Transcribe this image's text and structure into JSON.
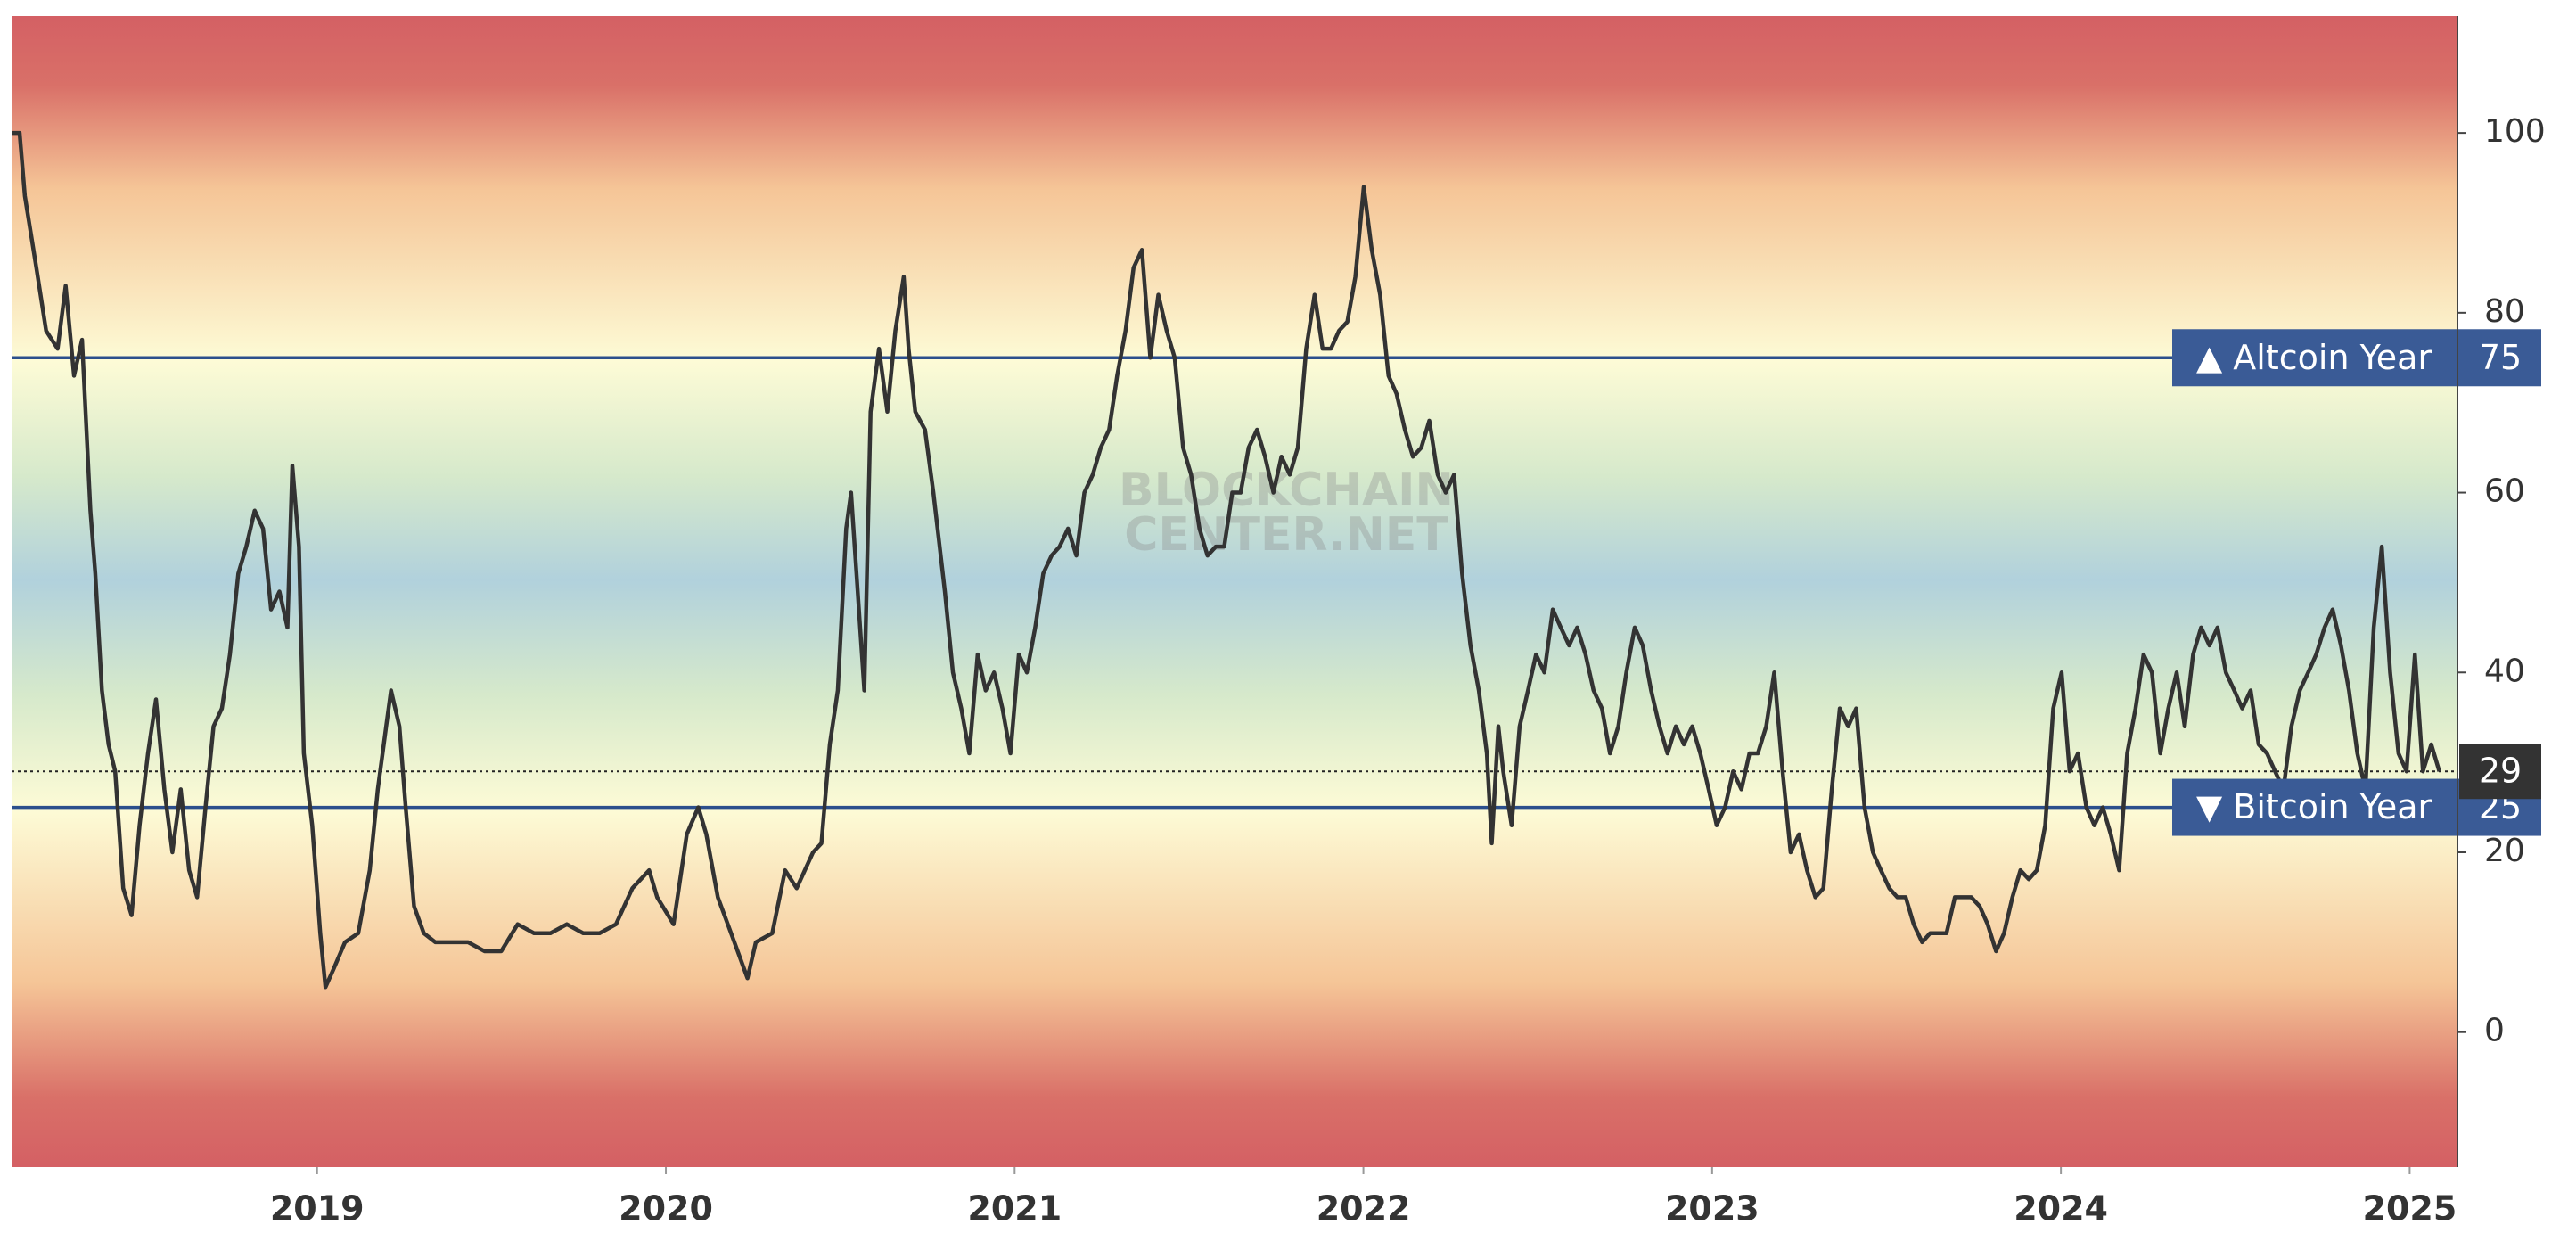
{
  "chart_data": {
    "type": "line",
    "color": "#333333",
    "watermark": [
      "BLOCKCHAIN",
      "CENTER.NET"
    ],
    "xlim": [
      2018.124,
      2025.137
    ],
    "ylim": [
      -15,
      113
    ],
    "xticks": [
      2019,
      2020,
      2021,
      2022,
      2023,
      2024,
      2025
    ],
    "yticks": [
      0,
      20,
      40,
      60,
      80,
      100
    ],
    "annotations": [
      {
        "text": "▲ Altcoin Year",
        "value": 75,
        "color": "#2c4f8c"
      },
      {
        "text": "▼ Bitcoin Year",
        "value": 25,
        "color": "#2c4f8c"
      }
    ],
    "current": 29,
    "x": [
      2018.124,
      2018.147,
      2018.162,
      2018.195,
      2018.223,
      2018.256,
      2018.279,
      2018.303,
      2018.326,
      2018.35,
      2018.364,
      2018.383,
      2018.402,
      2018.421,
      2018.444,
      2018.468,
      2018.491,
      2018.515,
      2018.538,
      2018.562,
      2018.585,
      2018.609,
      2018.633,
      2018.656,
      2018.68,
      2018.703,
      2018.727,
      2018.75,
      2018.774,
      2018.797,
      2018.821,
      2018.845,
      2018.868,
      2018.892,
      2018.915,
      2018.929,
      2018.948,
      2018.962,
      2018.986,
      2019.009,
      2019.024,
      2019.047,
      2019.08,
      2019.118,
      2019.151,
      2019.174,
      2019.198,
      2019.212,
      2019.236,
      2019.254,
      2019.278,
      2019.306,
      2019.339,
      2019.386,
      2019.433,
      2019.48,
      2019.528,
      2019.575,
      2019.622,
      2019.669,
      2019.716,
      2019.763,
      2019.81,
      2019.857,
      2019.904,
      2019.952,
      2019.975,
      2020.022,
      2020.06,
      2020.093,
      2020.116,
      2020.149,
      2020.187,
      2020.234,
      2020.258,
      2020.305,
      2020.342,
      2020.375,
      2020.422,
      2020.446,
      2020.47,
      2020.493,
      2020.517,
      2020.531,
      2020.55,
      2020.569,
      2020.587,
      2020.611,
      2020.635,
      2020.658,
      2020.682,
      2020.696,
      2020.715,
      2020.743,
      2020.767,
      2020.8,
      2020.823,
      2020.847,
      2020.87,
      2020.894,
      2020.917,
      2020.941,
      2020.965,
      2020.988,
      2021.012,
      2021.035,
      2021.059,
      2021.082,
      2021.106,
      2021.129,
      2021.153,
      2021.177,
      2021.2,
      2021.224,
      2021.247,
      2021.271,
      2021.294,
      2021.318,
      2021.341,
      2021.365,
      2021.389,
      2021.412,
      2021.436,
      2021.459,
      2021.483,
      2021.506,
      2021.53,
      2021.553,
      2021.577,
      2021.601,
      2021.624,
      2021.648,
      2021.671,
      2021.695,
      2021.718,
      2021.742,
      2021.765,
      2021.789,
      2021.812,
      2021.836,
      2021.86,
      2021.883,
      2021.907,
      2021.93,
      2021.954,
      2021.977,
      2022.001,
      2022.024,
      2022.048,
      2022.072,
      2022.095,
      2022.119,
      2022.142,
      2022.166,
      2022.189,
      2022.213,
      2022.236,
      2022.26,
      2022.283,
      2022.307,
      2022.331,
      2022.354,
      2022.368,
      2022.387,
      2022.401,
      2022.425,
      2022.448,
      2022.472,
      2022.495,
      2022.519,
      2022.543,
      2022.566,
      2022.59,
      2022.613,
      2022.637,
      2022.66,
      2022.684,
      2022.707,
      2022.731,
      2022.754,
      2022.778,
      2022.801,
      2022.825,
      2022.849,
      2022.872,
      2022.896,
      2022.919,
      2022.943,
      2022.966,
      2022.99,
      2023.013,
      2023.037,
      2023.06,
      2023.084,
      2023.107,
      2023.131,
      2023.155,
      2023.178,
      2023.202,
      2023.225,
      2023.249,
      2023.272,
      2023.296,
      2023.319,
      2023.343,
      2023.366,
      2023.39,
      2023.413,
      2023.437,
      2023.461,
      2023.484,
      2023.508,
      2023.531,
      2023.555,
      2023.578,
      2023.602,
      2023.625,
      2023.649,
      2023.672,
      2023.696,
      2023.719,
      2023.743,
      2023.767,
      2023.79,
      2023.814,
      2023.837,
      2023.861,
      2023.884,
      2023.908,
      2023.931,
      2023.955,
      2023.978,
      2024.002,
      2024.025,
      2024.049,
      2024.073,
      2024.096,
      2024.12,
      2024.143,
      2024.167,
      2024.19,
      2024.214,
      2024.237,
      2024.261,
      2024.285,
      2024.308,
      2024.332,
      2024.355,
      2024.379,
      2024.402,
      2024.426,
      2024.449,
      2024.473,
      2024.497,
      2024.52,
      2024.544,
      2024.567,
      2024.591,
      2024.614,
      2024.638,
      2024.661,
      2024.685,
      2024.709,
      2024.732,
      2024.756,
      2024.779,
      2024.803,
      2024.826,
      2024.85,
      2024.873,
      2024.897,
      2024.92,
      2024.944,
      2024.968,
      2024.991,
      2025.015,
      2025.038,
      2025.062,
      2025.085
    ],
    "values": [
      100,
      100,
      93,
      85,
      78,
      76,
      83,
      73,
      77,
      58,
      51,
      38,
      32,
      29,
      16,
      13,
      23,
      31,
      37,
      27,
      20,
      27,
      18,
      15,
      25,
      34,
      36,
      42,
      51,
      54,
      58,
      56,
      47,
      49,
      45,
      63,
      54,
      31,
      23,
      11,
      5,
      7,
      10,
      11,
      18,
      27,
      34,
      38,
      34,
      25,
      14,
      11,
      10,
      10,
      10,
      9,
      9,
      12,
      11,
      11,
      12,
      11,
      11,
      12,
      16,
      18,
      15,
      12,
      22,
      25,
      22,
      15,
      11,
      6,
      10,
      11,
      18,
      16,
      20,
      21,
      32,
      38,
      56,
      60,
      49,
      38,
      69,
      76,
      69,
      78,
      84,
      76,
      69,
      67,
      60,
      49,
      40,
      36,
      31,
      42,
      38,
      40,
      36,
      31,
      42,
      40,
      45,
      51,
      53,
      54,
      56,
      53,
      60,
      62,
      65,
      67,
      73,
      78,
      85,
      87,
      75,
      82,
      78,
      75,
      65,
      62,
      56,
      53,
      54,
      54,
      60,
      60,
      65,
      67,
      64,
      60,
      64,
      62,
      65,
      76,
      82,
      76,
      76,
      78,
      79,
      84,
      94,
      87,
      82,
      73,
      71,
      67,
      64,
      65,
      68,
      62,
      60,
      62,
      51,
      43,
      38,
      31,
      21,
      34,
      29,
      23,
      34,
      38,
      42,
      40,
      47,
      45,
      43,
      45,
      42,
      38,
      36,
      31,
      34,
      40,
      45,
      43,
      38,
      34,
      31,
      34,
      32,
      34,
      31,
      27,
      23,
      25,
      29,
      27,
      31,
      31,
      34,
      40,
      29,
      20,
      22,
      18,
      15,
      16,
      27,
      36,
      34,
      36,
      25,
      20,
      18,
      16,
      15,
      15,
      12,
      10,
      11,
      11,
      11,
      15,
      15,
      15,
      14,
      12,
      9,
      11,
      15,
      18,
      17,
      18,
      23,
      36,
      40,
      29,
      31,
      25,
      23,
      25,
      22,
      18,
      31,
      36,
      42,
      40,
      31,
      36,
      40,
      34,
      42,
      45,
      43,
      45,
      40,
      38,
      36,
      38,
      32,
      31,
      29,
      27,
      34,
      38,
      40,
      42,
      45,
      47,
      43,
      38,
      31,
      27,
      45,
      54,
      40,
      31,
      29,
      42,
      29,
      32,
      29
    ]
  }
}
